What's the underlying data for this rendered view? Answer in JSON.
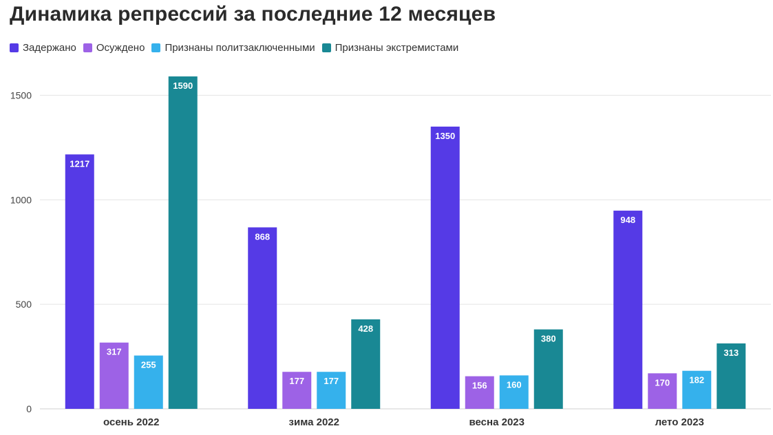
{
  "chart_data": {
    "type": "bar",
    "title": "Динамика репрессий за последние 12 месяцев",
    "categories": [
      "осень 2022",
      "зима 2022",
      "весна 2023",
      "лето 2023"
    ],
    "series": [
      {
        "name": "Задержано",
        "color": "#553ae6",
        "values": [
          1217,
          868,
          1350,
          948
        ]
      },
      {
        "name": "Осуждено",
        "color": "#9d62e6",
        "values": [
          317,
          177,
          156,
          170
        ]
      },
      {
        "name": "Признаны политзаключенными",
        "color": "#35b1ec",
        "values": [
          255,
          177,
          160,
          182
        ]
      },
      {
        "name": "Признаны экстремистами",
        "color": "#198894",
        "values": [
          1590,
          428,
          380,
          313
        ]
      }
    ],
    "yticks": [
      0,
      500,
      1000,
      1500
    ],
    "ylim": [
      0,
      1600
    ],
    "grid": true,
    "legend_position": "top-left",
    "xlabel": "",
    "ylabel": ""
  }
}
